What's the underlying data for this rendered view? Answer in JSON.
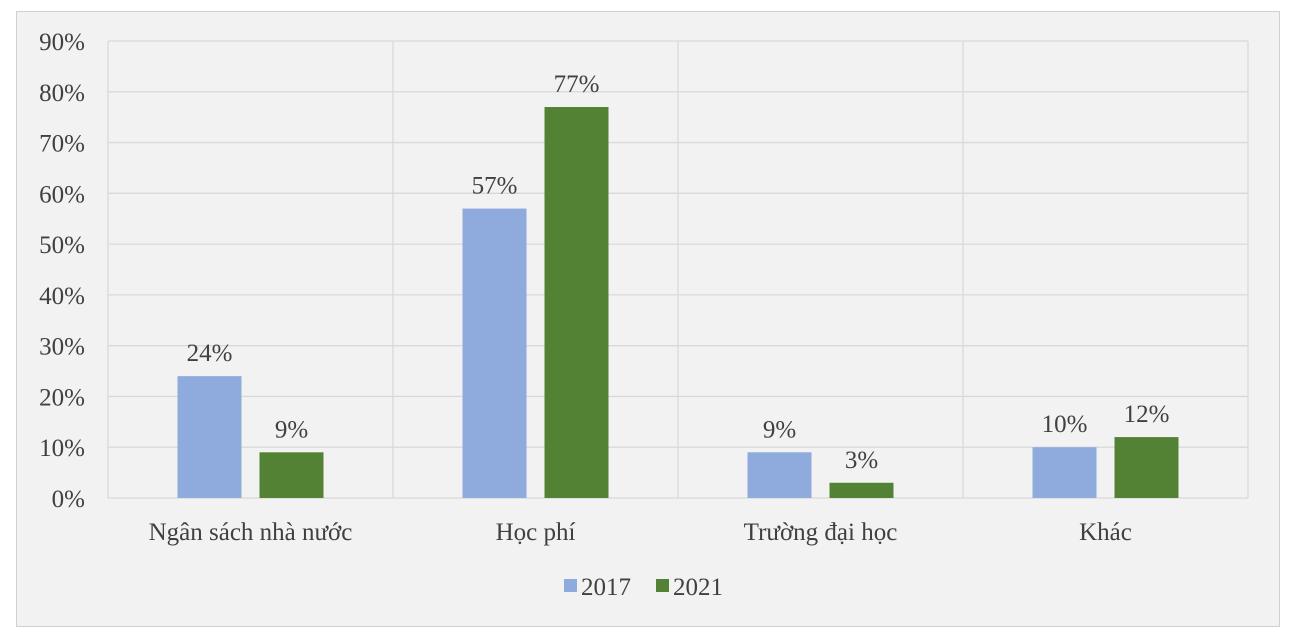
{
  "chart_data": {
    "type": "bar",
    "title": "",
    "xlabel": "",
    "ylabel": "",
    "categories": [
      "Ngân sách nhà nước",
      "Học phí",
      "Trường đại học",
      "Khác"
    ],
    "series": [
      {
        "name": "2017",
        "color": "#8faadc",
        "values": [
          24,
          57,
          9,
          10
        ],
        "labels": [
          "24%",
          "57%",
          "9%",
          "10%"
        ]
      },
      {
        "name": "2021",
        "color": "#548235",
        "values": [
          9,
          77,
          3,
          12
        ],
        "labels": [
          "9%",
          "77%",
          "3%",
          "12%"
        ]
      }
    ],
    "ylim": [
      0,
      90
    ],
    "y_ticks": [
      0,
      10,
      20,
      30,
      40,
      50,
      60,
      70,
      80,
      90
    ],
    "y_tick_labels": [
      "0%",
      "10%",
      "20%",
      "30%",
      "40%",
      "50%",
      "60%",
      "70%",
      "80%",
      "90%"
    ],
    "grid": true,
    "legend_position": "bottom"
  }
}
